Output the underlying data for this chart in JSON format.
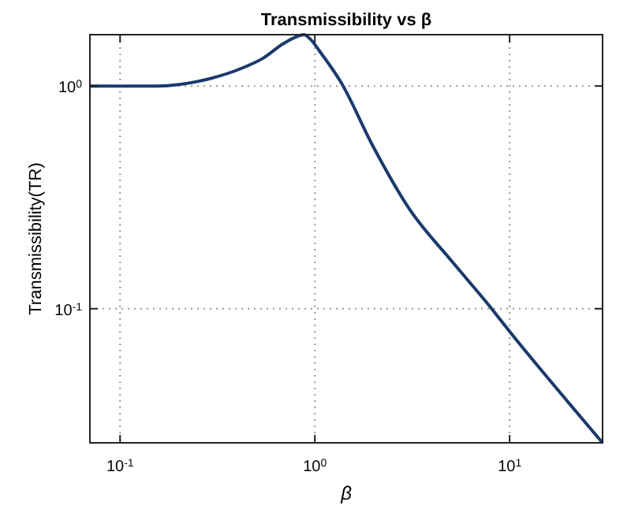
{
  "chart_data": {
    "type": "line",
    "title": "Transmissibility vs β",
    "xlabel": "β",
    "ylabel": "Transmissibility(TR)",
    "x": [
      0.07,
      0.155,
      0.29,
      0.42,
      0.54,
      0.69,
      0.8,
      0.88,
      0.95,
      1.06,
      1.37,
      1.98,
      3.06,
      5,
      7.8,
      10,
      20,
      30
    ],
    "series": [
      {
        "color": "#1a3a6b",
        "values": [
          1.0,
          1.0,
          1.08,
          1.2,
          1.33,
          1.55,
          1.66,
          1.7,
          1.62,
          1.43,
          1.03,
          0.54,
          0.28,
          0.165,
          0.104,
          0.079,
          0.038,
          0.025
        ]
      }
    ],
    "xlim": [
      0.07,
      30
    ],
    "ylim": [
      0.025,
      1.7
    ],
    "xticks": [
      {
        "value": 0.1,
        "label": "10$^{-1}$"
      },
      {
        "value": 1,
        "label": "10$^{0}$"
      },
      {
        "value": 10,
        "label": "10$^{1}$"
      }
    ],
    "yticks": [
      {
        "value": 0.1,
        "label": "10$^{-1}$"
      },
      {
        "value": 1,
        "label": "10$^{0}$"
      }
    ],
    "log": "xy",
    "grid": true,
    "marker": "none",
    "line_style": "solid"
  }
}
